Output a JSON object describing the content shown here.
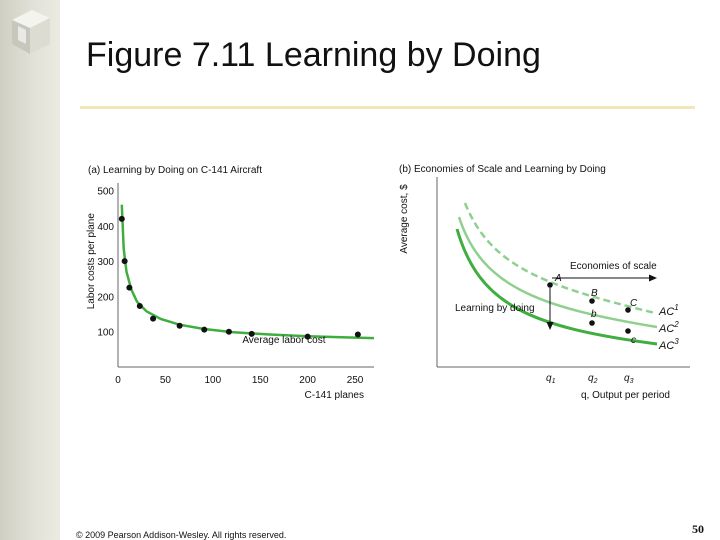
{
  "slide": {
    "title": "Figure 7.11 Learning by Doing",
    "copyright": "© 2009 Pearson Addison-Wesley. All rights reserved.",
    "page_number": "50",
    "accent_color": "#f0e7b6",
    "curve_color": "#3fae3f"
  },
  "chart_data": [
    {
      "type": "scatter",
      "title": "(a) Learning by Doing on C-141 Aircraft",
      "xlabel": "C-141 planes",
      "ylabel": "Labor costs per plane",
      "xlim": [
        0,
        270
      ],
      "ylim": [
        0,
        550
      ],
      "x_ticks": [
        0,
        50,
        100,
        150,
        200,
        250
      ],
      "y_ticks": [
        100,
        200,
        300,
        400,
        500
      ],
      "series": [
        {
          "name": "",
          "points": [
            [
              4,
              420
            ],
            [
              7,
              300
            ],
            [
              12,
              225
            ],
            [
              23,
              173
            ],
            [
              37,
              137
            ],
            [
              65,
              117
            ],
            [
              91,
              106
            ],
            [
              117,
              100
            ],
            [
              141,
              94
            ],
            [
              200,
              86
            ],
            [
              253,
              92
            ]
          ]
        }
      ],
      "curve": {
        "label": "Average labor cost",
        "points": [
          [
            4,
            460
          ],
          [
            6,
            335
          ],
          [
            9,
            270
          ],
          [
            14,
            220
          ],
          [
            20,
            185
          ],
          [
            30,
            158
          ],
          [
            45,
            136
          ],
          [
            65,
            120
          ],
          [
            90,
            108
          ],
          [
            120,
            99
          ],
          [
            160,
            92
          ],
          [
            200,
            87
          ],
          [
            240,
            84
          ],
          [
            270,
            82
          ]
        ]
      }
    },
    {
      "type": "line",
      "title": "(b) Economies of Scale and Learning by Doing",
      "ylabel": "Average cost, $",
      "xlabel": "q, Output per period",
      "x_ticks": [
        "q1",
        "q2",
        "q3"
      ],
      "series": [
        {
          "name": "AC1",
          "style": "dashed"
        },
        {
          "name": "AC2",
          "style": "solid-light"
        },
        {
          "name": "AC3",
          "style": "solid-dark"
        }
      ],
      "points": [
        {
          "label": "A",
          "on": "AC1",
          "at": "q1"
        },
        {
          "label": "B",
          "on": "AC1",
          "at": "q2"
        },
        {
          "label": "b",
          "on": "AC3",
          "at": "q2"
        },
        {
          "label": "C",
          "on": "AC1",
          "at": "q3"
        },
        {
          "label": "c",
          "on": "AC3",
          "at": "q3"
        }
      ],
      "annotations": [
        "Economies of scale",
        "Learning by doing"
      ]
    }
  ]
}
